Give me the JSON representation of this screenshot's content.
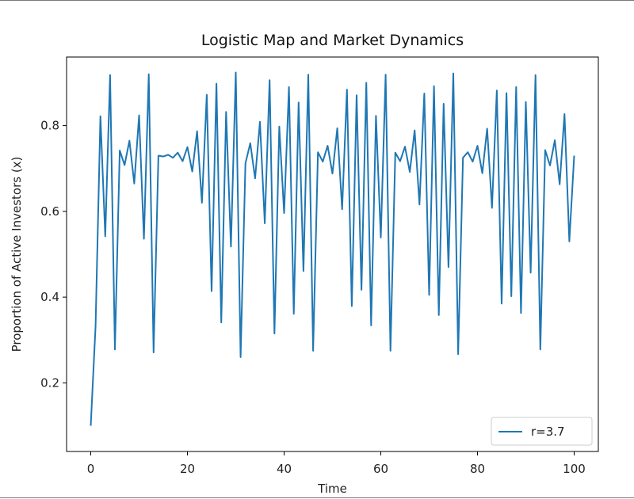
{
  "chart_data": {
    "type": "line",
    "title": "Logistic Map and Market Dynamics",
    "xlabel": "Time",
    "ylabel": "Proportion of Active Investors (x)",
    "xlim": [
      -5,
      105
    ],
    "ylim": [
      0.04,
      0.96
    ],
    "xticks": [
      0,
      20,
      40,
      60,
      80,
      100
    ],
    "yticks": [
      0.2,
      0.4,
      0.6,
      0.8
    ],
    "xtick_labels": [
      "0",
      "20",
      "40",
      "60",
      "80",
      "100"
    ],
    "ytick_labels": [
      "0.2",
      "0.4",
      "0.6",
      "0.8"
    ],
    "grid": false,
    "legend": "lower-right",
    "series": [
      {
        "name": "r=3.7",
        "color": "#1f77b4",
        "x": [
          0,
          1,
          2,
          3,
          4,
          5,
          6,
          7,
          8,
          9,
          10,
          11,
          12,
          13,
          14,
          15,
          16,
          17,
          18,
          19,
          20,
          21,
          22,
          23,
          24,
          25,
          26,
          27,
          28,
          29,
          30,
          31,
          32,
          33,
          34,
          35,
          36,
          37,
          38,
          39,
          40,
          41,
          42,
          43,
          44,
          45,
          46,
          47,
          48,
          49,
          50,
          51,
          52,
          53,
          54,
          55,
          56,
          57,
          58,
          59,
          60,
          61,
          62,
          63,
          64,
          65,
          66,
          67,
          68,
          69,
          70,
          71,
          72,
          73,
          74,
          75,
          76,
          77,
          78,
          79,
          80,
          81,
          82,
          83,
          84,
          85,
          86,
          87,
          88,
          89,
          90,
          91,
          92,
          93,
          94,
          95,
          96,
          97,
          98,
          99,
          100
        ],
        "y": [
          0.1,
          0.333,
          0.822,
          0.542,
          0.918,
          0.278,
          0.742,
          0.708,
          0.765,
          0.665,
          0.824,
          0.536,
          0.92,
          0.271,
          0.73,
          0.728,
          0.732,
          0.725,
          0.737,
          0.717,
          0.75,
          0.693,
          0.787,
          0.62,
          0.872,
          0.414,
          0.898,
          0.341,
          0.832,
          0.518,
          0.924,
          0.26,
          0.712,
          0.759,
          0.677,
          0.809,
          0.572,
          0.906,
          0.315,
          0.798,
          0.596,
          0.89,
          0.361,
          0.854,
          0.461,
          0.919,
          0.275,
          0.738,
          0.716,
          0.753,
          0.688,
          0.794,
          0.605,
          0.884,
          0.379,
          0.871,
          0.417,
          0.9,
          0.334,
          0.823,
          0.539,
          0.919,
          0.275,
          0.737,
          0.717,
          0.751,
          0.692,
          0.789,
          0.616,
          0.875,
          0.405,
          0.892,
          0.358,
          0.851,
          0.47,
          0.922,
          0.267,
          0.725,
          0.738,
          0.716,
          0.753,
          0.689,
          0.793,
          0.608,
          0.882,
          0.385,
          0.876,
          0.402,
          0.89,
          0.363,
          0.855,
          0.457,
          0.918,
          0.278,
          0.743,
          0.707,
          0.766,
          0.663,
          0.827,
          0.53,
          0.73
        ]
      }
    ]
  }
}
